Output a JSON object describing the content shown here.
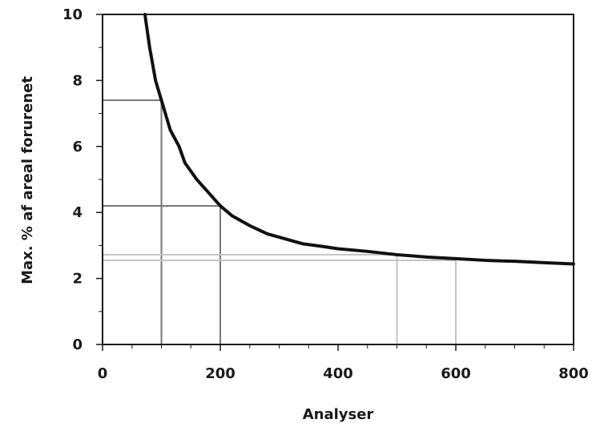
{
  "chart_data": {
    "type": "line",
    "title": "",
    "xlabel": "Analyser",
    "ylabel": "Max. % af areal forurenet",
    "xlim": [
      0,
      800
    ],
    "ylim": [
      0,
      10
    ],
    "x_ticks": [
      0,
      200,
      400,
      600,
      800
    ],
    "y_ticks": [
      0,
      2,
      4,
      6,
      8,
      10
    ],
    "x_tick_labels": [
      "0",
      "200",
      "400",
      "600",
      "800"
    ],
    "y_tick_labels": [
      "0",
      "2",
      "4",
      "6",
      "8",
      "10"
    ],
    "grid": false,
    "series": [
      {
        "color": "#111111",
        "x": [
          72,
          80,
          90,
          100,
          115,
          130,
          140,
          160,
          180,
          200,
          220,
          250,
          280,
          300,
          340,
          370,
          400,
          450,
          500,
          550,
          600,
          650,
          700,
          750,
          800
        ],
        "y": [
          10.0,
          9.0,
          8.0,
          7.4,
          6.5,
          6.0,
          5.5,
          5.0,
          4.6,
          4.2,
          3.9,
          3.6,
          3.35,
          3.25,
          3.05,
          2.98,
          2.9,
          2.82,
          2.72,
          2.65,
          2.6,
          2.55,
          2.52,
          2.48,
          2.44
        ]
      }
    ],
    "reference_lines": [
      {
        "x": 100,
        "y": 7.4,
        "color": "#777777"
      },
      {
        "x": 200,
        "y": 4.2,
        "color": "#777777"
      },
      {
        "x": 500,
        "y": 2.72,
        "color": "#c4c4c4"
      },
      {
        "x": 600,
        "y": 2.55,
        "color": "#c4c4c4"
      }
    ]
  }
}
